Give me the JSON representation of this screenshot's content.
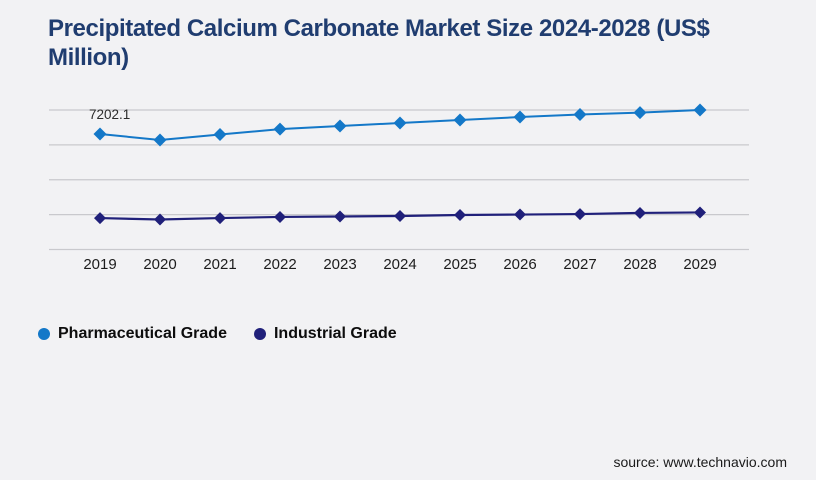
{
  "chart": {
    "title": "Precipitated Calcium Carbonate Market Size 2024-2028 (US$ Million)"
  },
  "chart_data": {
    "type": "line",
    "title": "Precipitated Calcium Carbonate Market Size 2024-2028 (US$ Million)",
    "categories": [
      "2019",
      "2020",
      "2021",
      "2022",
      "2023",
      "2024",
      "2025",
      "2026",
      "2027",
      "2028",
      "2029"
    ],
    "series": [
      {
        "name": "Pharmaceutical Grade",
        "color": "#1478c8",
        "marker": "diamond",
        "marker_size": 6.5,
        "values": [
          7202.1,
          6830,
          7170,
          7510,
          7700,
          7890,
          8080,
          8260,
          8420,
          8540,
          8700
        ]
      },
      {
        "name": "Industrial Grade",
        "color": "#20207a",
        "marker": "diamond",
        "marker_size": 6,
        "values": [
          1960,
          1870,
          1960,
          2030,
          2060,
          2090,
          2150,
          2180,
          2210,
          2280,
          2310
        ]
      }
    ],
    "data_labels": [
      {
        "series_index": 0,
        "category_index": 0,
        "text": "7202.1"
      }
    ],
    "xlabel": "",
    "ylabel": "",
    "ylim": [
      0,
      8700
    ],
    "grid": "horizontal",
    "gridline_count": 5,
    "y_axis_labels_shown": false,
    "legend_position": "bottom-left"
  },
  "legend": {
    "items": [
      {
        "label": "Pharmaceutical Grade",
        "color": "#1478c8"
      },
      {
        "label": "Industrial Grade",
        "color": "#20207a"
      }
    ]
  },
  "footer": {
    "source": "source: www.technavio.com"
  },
  "colors": {
    "background": "#f2f2f4",
    "gridline": "#c9c9cd",
    "title": "#203d70",
    "axis_text": "#1c1c1c",
    "data_label_text": "#2b2b2b"
  }
}
